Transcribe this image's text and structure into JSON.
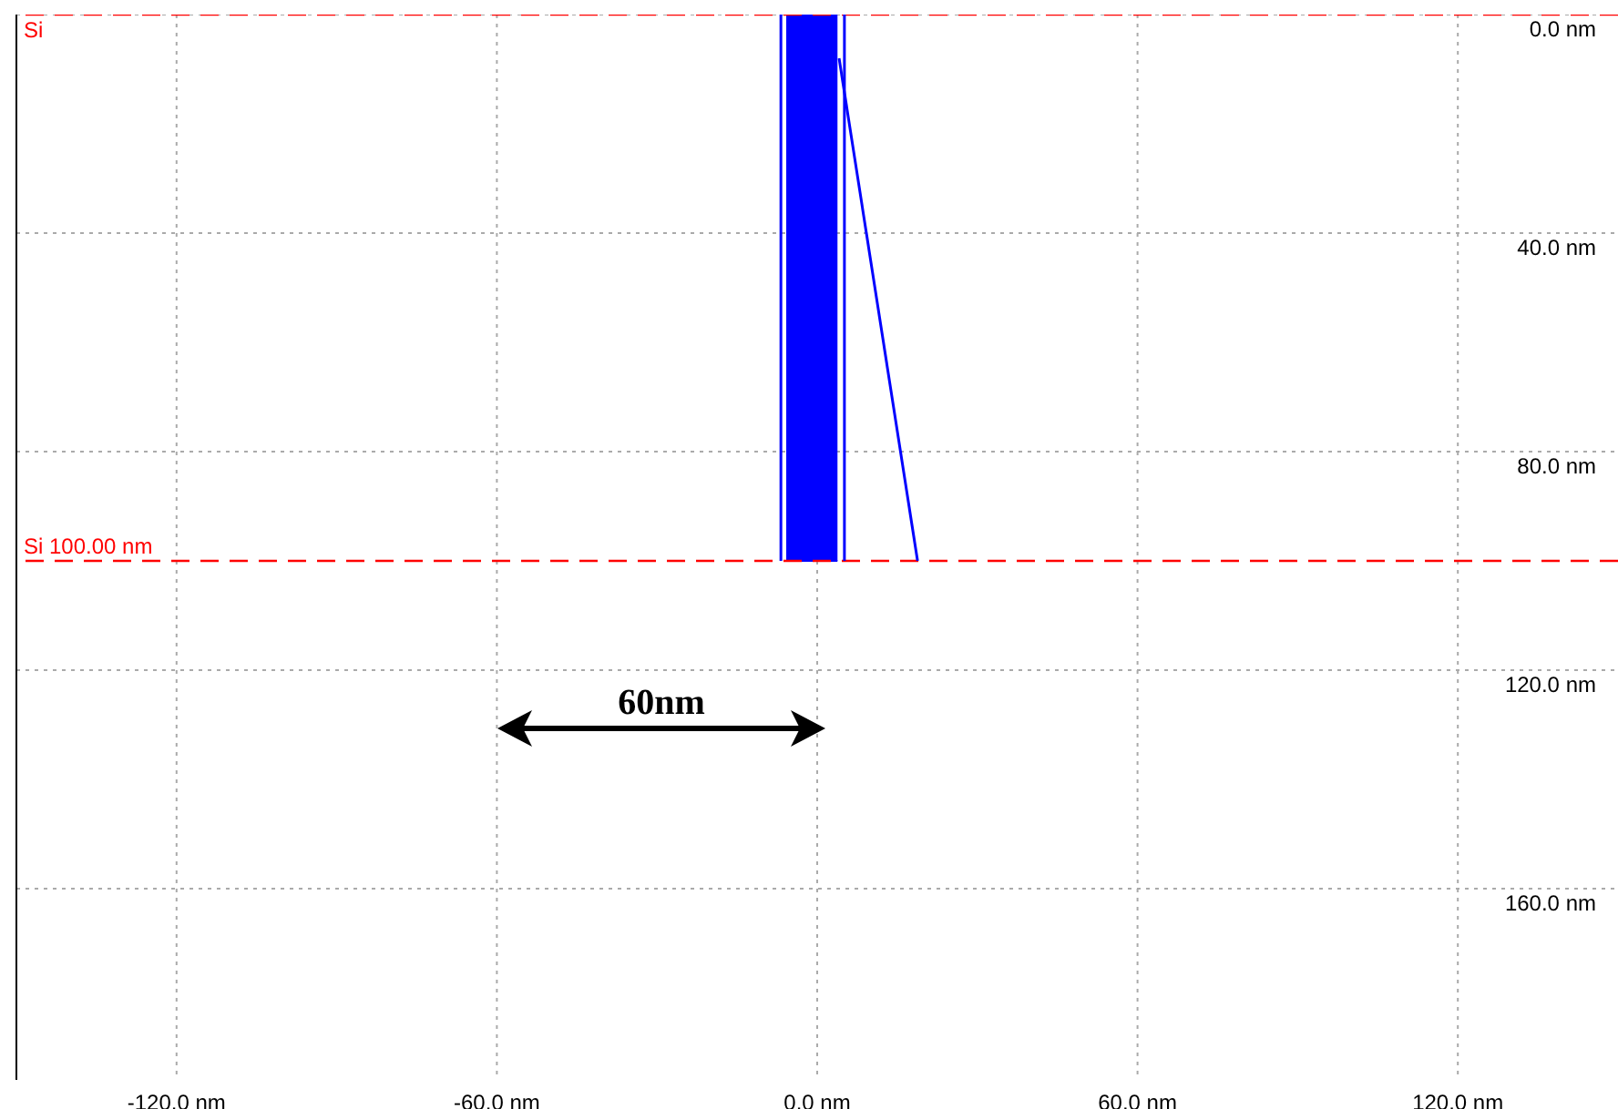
{
  "chart_data": {
    "type": "line",
    "xlim": [
      -150,
      150
    ],
    "xticks": [
      {
        "value": -120,
        "label": "-120.0 nm"
      },
      {
        "value": -60,
        "label": "-60.0 nm"
      },
      {
        "value": 0,
        "label": "0.0 nm"
      },
      {
        "value": 60,
        "label": "60.0 nm"
      },
      {
        "value": 120,
        "label": "120.0 nm"
      }
    ],
    "ylim": [
      195,
      0
    ],
    "yticks": [
      {
        "value": 0,
        "label": "0.0 nm"
      },
      {
        "value": 40,
        "label": "40.0 nm"
      },
      {
        "value": 80,
        "label": "80.0 nm"
      },
      {
        "value": 120,
        "label": "120.0 nm"
      },
      {
        "value": 160,
        "label": "160.0 nm"
      }
    ],
    "grid": true,
    "legend": false,
    "marker": "none",
    "line_style": "solid",
    "series": [
      {
        "type": "area",
        "color": "#0000ff",
        "x": [
          -5.8,
          3.8
        ],
        "values": [
          100,
          100
        ]
      },
      {
        "color": "#0000ff",
        "x": [
          -6.8,
          -6.8
        ],
        "values": [
          0,
          100
        ]
      },
      {
        "color": "#0000ff",
        "x": [
          5.1,
          5.1
        ],
        "values": [
          0,
          100
        ]
      },
      {
        "color": "#0000ff",
        "x": [
          4.1,
          18.8
        ],
        "values": [
          8,
          100
        ]
      }
    ],
    "ref_lines": [
      {
        "axis": "y",
        "value": 0,
        "label": "Si",
        "color": "#ff0000",
        "line_style": "dashed"
      },
      {
        "axis": "y",
        "value": 100,
        "label": "Si 100.00 nm",
        "color": "#ff0000",
        "line_style": "dashed"
      }
    ],
    "annotations": [
      "60nm"
    ]
  }
}
